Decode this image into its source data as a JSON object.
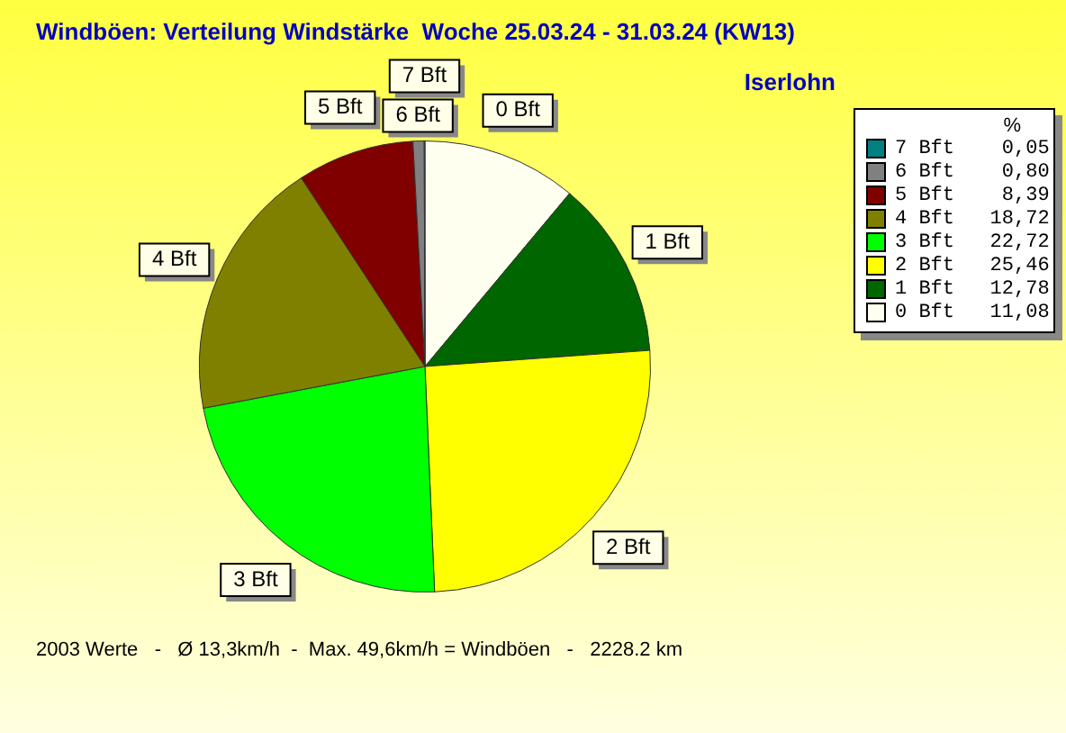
{
  "chart_data": {
    "type": "pie",
    "title": "Windböen: Verteilung Windstärke  Woche 25.03.24 - 31.03.24 (KW13)",
    "subtitle": "Iserlohn",
    "categories": [
      "0 Bft",
      "1 Bft",
      "2 Bft",
      "3 Bft",
      "4 Bft",
      "5 Bft",
      "6 Bft",
      "7 Bft"
    ],
    "values": [
      11.08,
      12.78,
      25.46,
      22.72,
      18.72,
      8.39,
      0.8,
      0.05
    ],
    "colors": [
      "#fffff0",
      "#006600",
      "#ffff00",
      "#00ff00",
      "#808000",
      "#800000",
      "#808080",
      "#008080"
    ],
    "value_labels": [
      "11,08",
      "12,78",
      "25,46",
      "22,72",
      "18,72",
      "8,39",
      "0,80",
      "0,05"
    ],
    "legend": "right",
    "legend_title": "%",
    "annotations": [
      "2003 Werte   -   Ø 13,3km/h  -  Max. 49,6km/h = Windböen   -   2228.2 km"
    ]
  }
}
